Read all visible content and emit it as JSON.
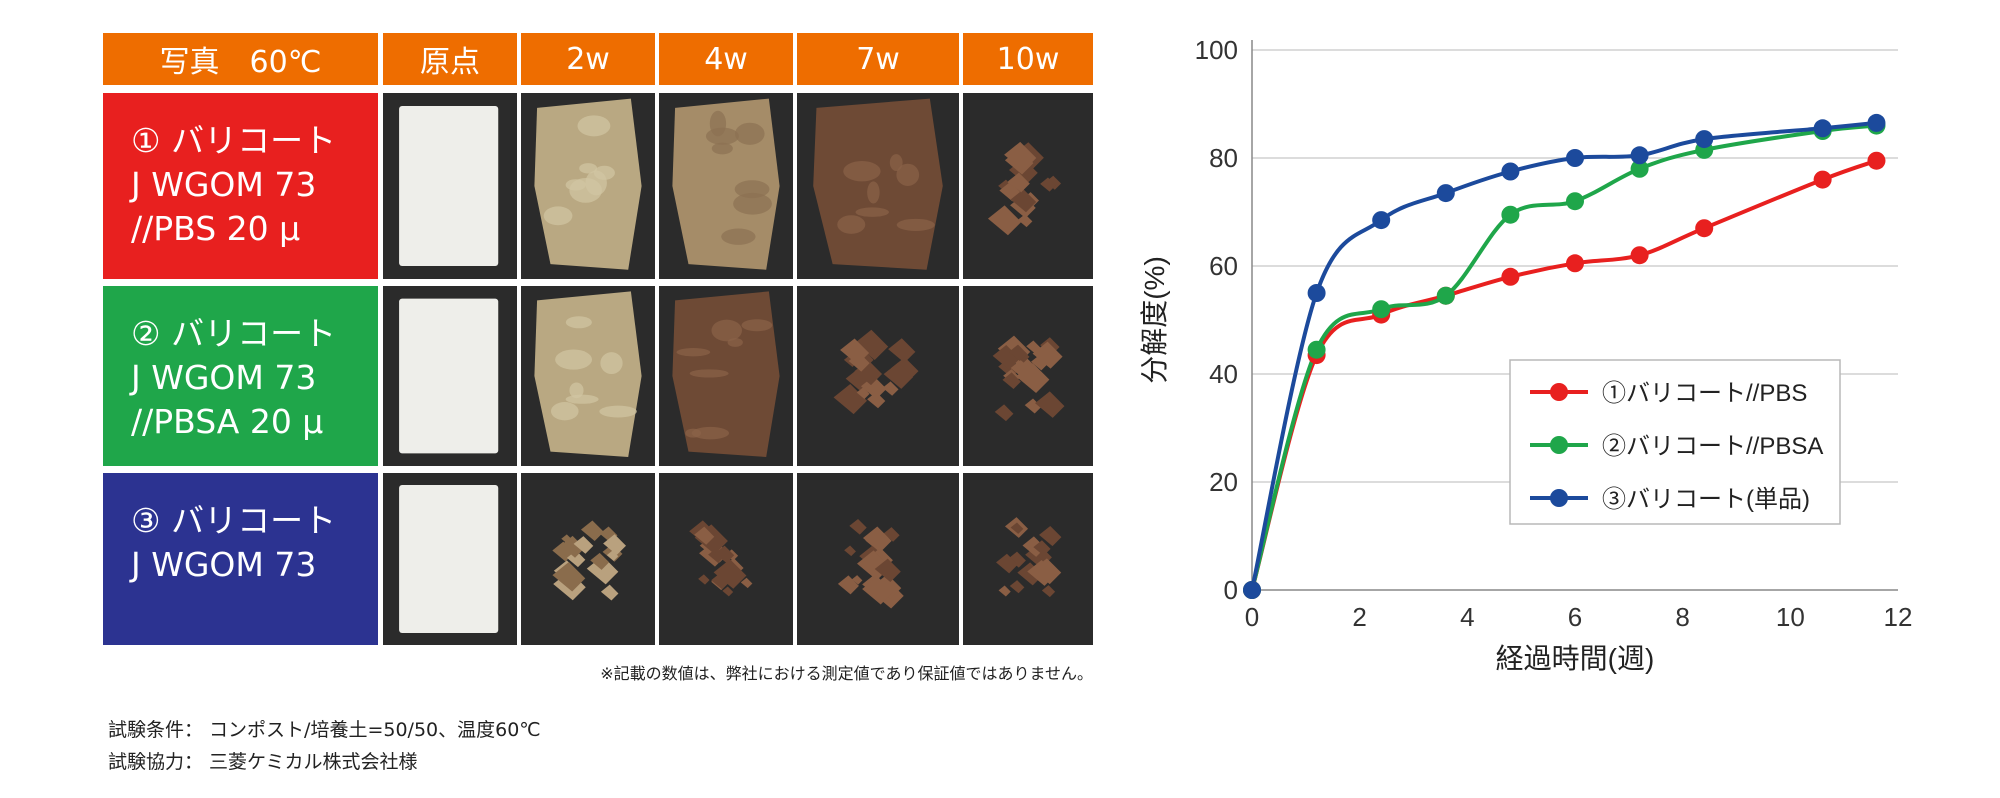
{
  "table": {
    "headers": [
      "写真　60℃",
      "原点",
      "2w",
      "4w",
      "7w",
      "10w"
    ],
    "rows": [
      {
        "lines": [
          "① バリコート",
          "J WGOM 73",
          "//PBS 20 μ"
        ],
        "color": "#e8201f",
        "samples": [
          "film-white",
          "film-beige",
          "film-tan",
          "film-brown",
          "fragments"
        ]
      },
      {
        "lines": [
          "② バリコート",
          "J WGOM  73",
          "//PBSA 20 μ"
        ],
        "color": "#1fa64a",
        "samples": [
          "film-white",
          "film-beige",
          "film-brown",
          "fragments",
          "fragments"
        ]
      },
      {
        "lines": [
          "③ バリコート",
          "J WGOM 73"
        ],
        "color": "#2c3391",
        "samples": [
          "film-white",
          "fragments-light",
          "fragments",
          "fragments",
          "fragments"
        ]
      }
    ],
    "note": "※記載の数値は、弊社における測定値であり保証値ではありません。"
  },
  "conditions": [
    "試験条件：  コンポスト/培養土=50/50、温度60℃",
    "試験協力：  三菱ケミカル株式会社様"
  ],
  "chart_data": {
    "type": "line",
    "xlabel": "経過時間(週)",
    "ylabel": "分解度(%)",
    "xlim": [
      0,
      12
    ],
    "ylim": [
      0,
      100
    ],
    "xticks": [
      0,
      2,
      4,
      6,
      8,
      10,
      12
    ],
    "yticks": [
      0,
      20,
      40,
      60,
      80,
      100
    ],
    "grid": "horizontal",
    "legend_position": "lower-right",
    "series": [
      {
        "name": "①バリコート//PBS",
        "color": "#e8201f",
        "x": [
          0,
          1.2,
          2.4,
          3.6,
          4.8,
          6.0,
          7.2,
          8.4,
          10.6,
          11.6
        ],
        "y": [
          0,
          43.5,
          51,
          54.5,
          58,
          60.5,
          62,
          67,
          76,
          79.5
        ]
      },
      {
        "name": "②バリコート//PBSA",
        "color": "#1fa64a",
        "x": [
          0,
          1.2,
          2.4,
          3.6,
          4.8,
          6.0,
          7.2,
          8.4,
          10.6,
          11.6
        ],
        "y": [
          0,
          44.5,
          52,
          54.5,
          69.5,
          72,
          78,
          81.5,
          85,
          86
        ]
      },
      {
        "name": "③バリコート(単品)",
        "color": "#1c4a9c",
        "x": [
          0,
          1.2,
          2.4,
          3.6,
          4.8,
          6.0,
          7.2,
          8.4,
          10.6,
          11.6
        ],
        "y": [
          0,
          55,
          68.5,
          73.5,
          77.5,
          80,
          80.5,
          83.5,
          85.5,
          86.5
        ]
      }
    ]
  }
}
